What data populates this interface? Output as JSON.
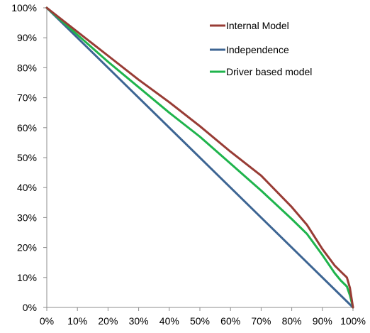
{
  "chart_data": {
    "type": "line",
    "title": "",
    "xlabel": "",
    "ylabel": "",
    "xlim": [
      0,
      100
    ],
    "ylim": [
      0,
      100
    ],
    "x_ticks": [
      "0%",
      "10%",
      "20%",
      "30%",
      "40%",
      "50%",
      "60%",
      "70%",
      "80%",
      "90%",
      "100%"
    ],
    "y_ticks": [
      "0%",
      "10%",
      "20%",
      "30%",
      "40%",
      "50%",
      "60%",
      "70%",
      "80%",
      "90%",
      "100%"
    ],
    "grid": false,
    "legend_position": "top-right",
    "series": [
      {
        "name": "Internal Model",
        "color": "#983c35",
        "x": [
          0,
          10,
          20,
          30,
          40,
          50,
          60,
          70,
          80,
          85,
          90,
          94,
          96,
          98,
          99,
          100
        ],
        "y": [
          100,
          92,
          84,
          76,
          68.5,
          60.5,
          52,
          44,
          33.5,
          27.5,
          19.5,
          14,
          12,
          10,
          6.5,
          0
        ]
      },
      {
        "name": "Independence",
        "color": "#3d6593",
        "x": [
          0,
          100
        ],
        "y": [
          100,
          0
        ]
      },
      {
        "name": "Driver based model",
        "color": "#1fb44c",
        "x": [
          0,
          10,
          20,
          30,
          40,
          50,
          60,
          70,
          80,
          85,
          90,
          94,
          96,
          98,
          99,
          100
        ],
        "y": [
          100,
          91,
          82,
          73.5,
          65,
          57,
          48,
          39,
          29.5,
          24.5,
          17.5,
          11.5,
          9,
          7,
          4,
          0
        ]
      }
    ]
  }
}
